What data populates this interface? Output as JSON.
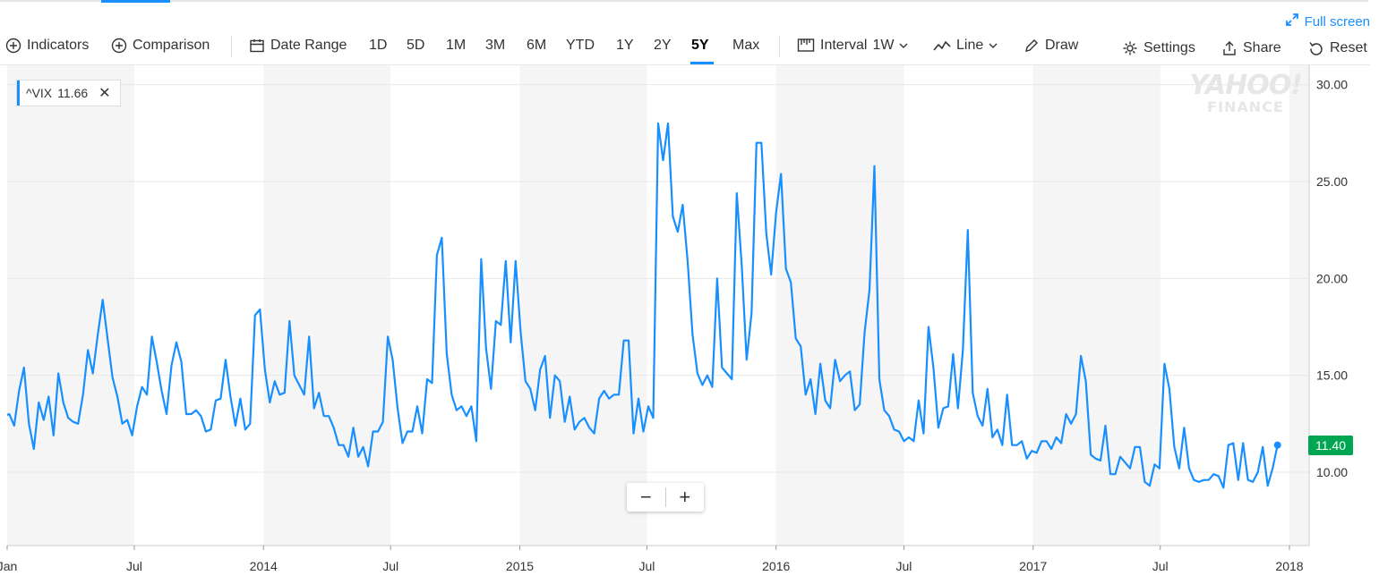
{
  "header": {
    "fullscreen_label": "Full screen"
  },
  "toolbar": {
    "indicators_label": "Indicators",
    "comparison_label": "Comparison",
    "date_range_label": "Date Range",
    "ranges": [
      "1D",
      "5D",
      "1M",
      "3M",
      "6M",
      "YTD",
      "1Y",
      "2Y",
      "5Y",
      "Max"
    ],
    "active_range": "5Y",
    "interval_label": "Interval",
    "interval_value": "1W",
    "chart_type_label": "Line",
    "draw_label": "Draw",
    "settings_label": "Settings",
    "share_label": "Share",
    "reset_label": "Reset"
  },
  "legend": {
    "symbol": "^VIX",
    "value": "11.66"
  },
  "watermark": {
    "line1": "YAHOO!",
    "line2": "FINANCE"
  },
  "price_badge": "11.40",
  "zoom": {
    "minus": "−",
    "plus": "+"
  },
  "colors": {
    "accent": "#188fff",
    "line": "#188fff",
    "badge": "#00a651",
    "band": "#f5f5f5"
  },
  "chart_data": {
    "type": "line",
    "series": [
      {
        "name": "^VIX",
        "x_start": "2012-12-28",
        "x_step_days": 7,
        "values": [
          12.9,
          13.0,
          12.4,
          14.2,
          15.4,
          12.5,
          11.2,
          13.6,
          12.7,
          13.9,
          11.9,
          15.1,
          13.6,
          12.8,
          12.6,
          12.5,
          14.0,
          16.3,
          15.1,
          17.1,
          18.9,
          16.9,
          14.9,
          13.9,
          12.5,
          12.7,
          11.9,
          13.4,
          14.4,
          14.0,
          17.0,
          15.7,
          14.2,
          13.0,
          15.5,
          16.7,
          15.7,
          13.0,
          13.0,
          13.2,
          12.9,
          12.1,
          12.2,
          13.7,
          13.8,
          15.8,
          13.9,
          12.4,
          13.8,
          12.2,
          12.5,
          18.1,
          18.4,
          15.3,
          13.6,
          14.7,
          14.0,
          14.1,
          17.8,
          15.0,
          14.5,
          14.0,
          17.0,
          13.3,
          14.1,
          12.9,
          12.9,
          12.3,
          11.4,
          11.4,
          10.8,
          12.3,
          10.8,
          11.3,
          10.3,
          12.1,
          12.1,
          12.6,
          17.0,
          15.8,
          13.3,
          11.5,
          12.1,
          12.1,
          13.4,
          12.0,
          14.8,
          14.6,
          21.2,
          22.1,
          16.1,
          14.0,
          13.2,
          13.4,
          12.9,
          13.4,
          11.6,
          21.0,
          16.4,
          14.3,
          17.8,
          17.6,
          20.9,
          16.7,
          20.9,
          17.3,
          14.7,
          14.3,
          13.2,
          15.3,
          16.0,
          12.8,
          15.0,
          14.7,
          12.6,
          13.9,
          12.2,
          12.6,
          12.8,
          12.3,
          12.0,
          13.8,
          14.2,
          13.8,
          14.0,
          14.0,
          16.8,
          16.8,
          12.0,
          13.8,
          12.1,
          13.4,
          12.8,
          28.0,
          26.1,
          28.0,
          23.2,
          22.4,
          23.8,
          20.9,
          17.1,
          15.1,
          14.5,
          15.0,
          14.4,
          20.0,
          15.4,
          15.1,
          14.8,
          24.4,
          20.7,
          15.8,
          18.2,
          27.0,
          27.0,
          22.3,
          20.2,
          23.4,
          25.4,
          20.5,
          19.8,
          16.9,
          16.5,
          14.0,
          14.8,
          13.0,
          15.6,
          13.7,
          13.3,
          15.8,
          14.7,
          15.0,
          15.2,
          13.2,
          13.5,
          17.2,
          19.4,
          25.8,
          14.8,
          13.2,
          12.9,
          12.2,
          12.1,
          11.6,
          11.8,
          11.6,
          13.7,
          12.0,
          17.5,
          15.4,
          12.3,
          13.3,
          13.4,
          16.1,
          13.3,
          16.3,
          22.5,
          14.1,
          12.9,
          12.4,
          14.3,
          11.8,
          12.2,
          11.4,
          14.0,
          11.4,
          11.4,
          11.6,
          10.7,
          11.1,
          11.0,
          11.6,
          11.6,
          11.2,
          11.8,
          11.5,
          13.0,
          12.5,
          13.0,
          16.0,
          14.7,
          10.9,
          10.7,
          10.6,
          12.4,
          9.9,
          9.9,
          10.8,
          10.5,
          10.2,
          11.3,
          11.3,
          9.5,
          9.3,
          10.4,
          10.2,
          15.6,
          14.3,
          11.3,
          10.2,
          12.3,
          10.2,
          9.6,
          9.5,
          9.6,
          9.6,
          9.9,
          9.8,
          9.2,
          11.4,
          11.5,
          9.6,
          11.5,
          9.6,
          9.5,
          10.0,
          11.3,
          9.3,
          10.2,
          11.4
        ]
      }
    ],
    "x_ticks": [
      {
        "label": "Jan",
        "date": "2013-01-01"
      },
      {
        "label": "Jul",
        "date": "2013-07-01"
      },
      {
        "label": "2014",
        "date": "2014-01-01"
      },
      {
        "label": "Jul",
        "date": "2014-07-01"
      },
      {
        "label": "2015",
        "date": "2015-01-01"
      },
      {
        "label": "Jul",
        "date": "2015-07-01"
      },
      {
        "label": "2016",
        "date": "2016-01-01"
      },
      {
        "label": "Jul",
        "date": "2016-07-01"
      },
      {
        "label": "2017",
        "date": "2017-01-01"
      },
      {
        "label": "Jul",
        "date": "2017-07-01"
      },
      {
        "label": "2018",
        "date": "2018-01-01"
      }
    ],
    "y_ticks": [
      "10.00",
      "15.00",
      "20.00",
      "25.00",
      "30.00"
    ],
    "ylim": [
      5.2,
      32.0
    ],
    "grid": true,
    "shaded_bands": "alternating half-years"
  }
}
